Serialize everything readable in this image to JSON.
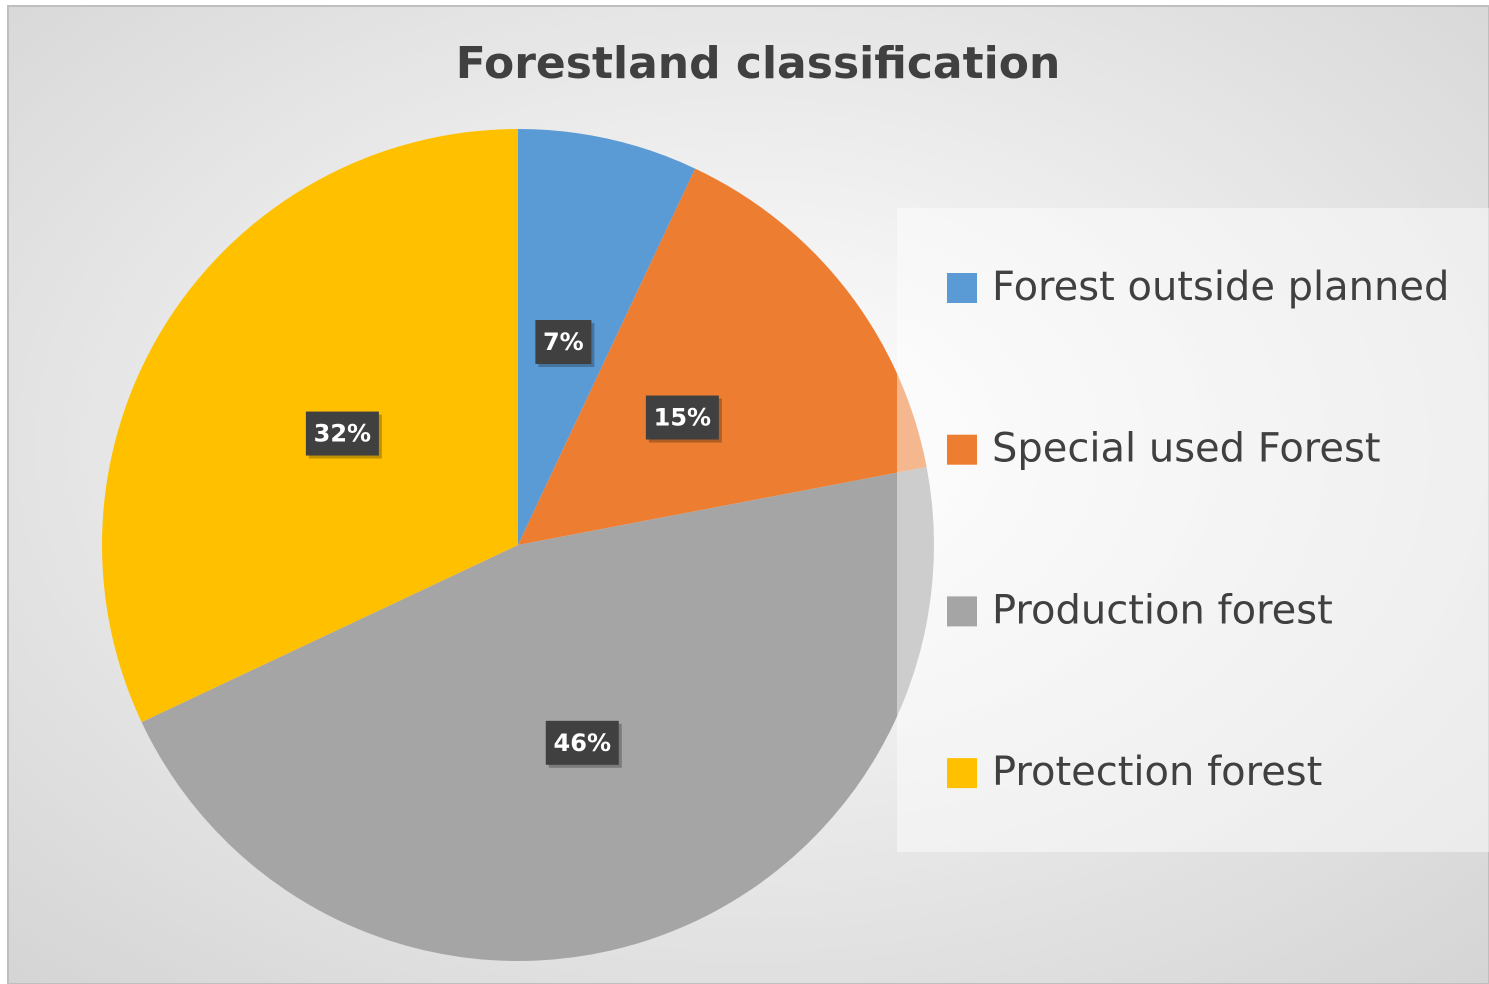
{
  "chart_data": {
    "type": "pie",
    "title": "Forestland classification",
    "categories": [
      "Forest outside planned",
      "Special used Forest",
      "Production forest",
      "Protection forest"
    ],
    "values": [
      7,
      15,
      46,
      32
    ],
    "value_labels": [
      "7%",
      "15%",
      "46%",
      "32%"
    ],
    "colors": [
      "#5b9bd5",
      "#ed7d31",
      "#a5a5a5",
      "#ffc000"
    ],
    "legend": "right"
  }
}
